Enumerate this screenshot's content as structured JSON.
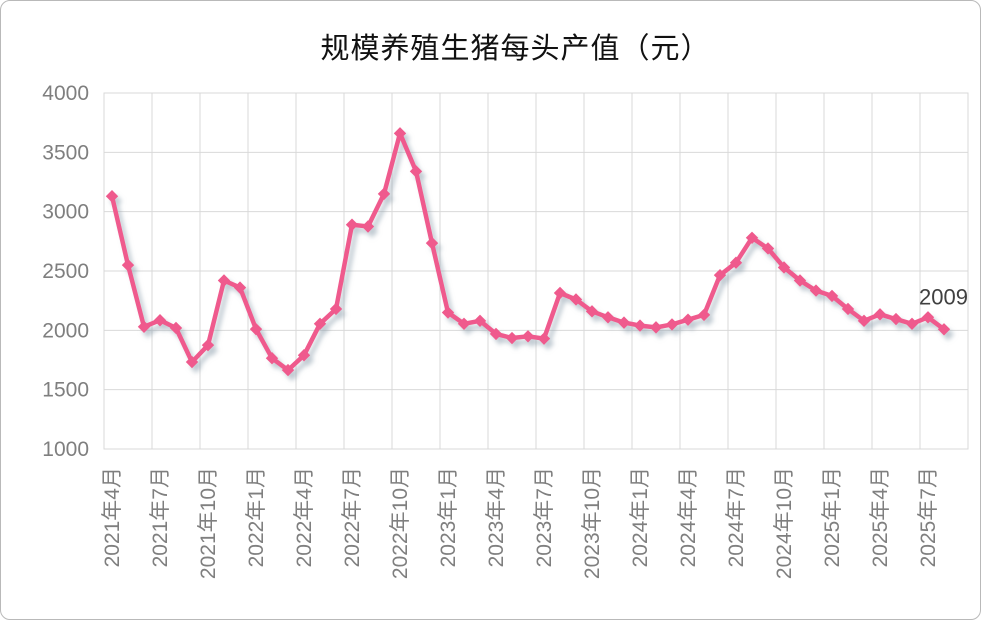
{
  "title": "规模养殖生猪每头产值（元）",
  "chart_data": {
    "type": "line",
    "title": "规模养殖生猪每头产值（元）",
    "unit": "元",
    "x": [
      "2021年4月",
      "2021年5月",
      "2021年6月",
      "2021年7月",
      "2021年8月",
      "2021年9月",
      "2021年10月",
      "2021年11月",
      "2021年12月",
      "2022年1月",
      "2022年2月",
      "2022年3月",
      "2022年4月",
      "2022年5月",
      "2022年6月",
      "2022年7月",
      "2022年8月",
      "2022年9月",
      "2022年10月",
      "2022年11月",
      "2022年12月",
      "2023年1月",
      "2023年2月",
      "2023年3月",
      "2023年4月",
      "2023年5月",
      "2023年6月",
      "2023年7月",
      "2023年8月",
      "2023年9月",
      "2023年10月",
      "2023年11月",
      "2023年12月",
      "2024年1月",
      "2024年2月",
      "2024年3月",
      "2024年4月",
      "2024年5月",
      "2024年6月",
      "2024年7月",
      "2024年8月",
      "2024年9月",
      "2024年10月",
      "2024年11月",
      "2024年12月",
      "2025年1月",
      "2025年2月",
      "2025年3月",
      "2025年4月",
      "2025年5月",
      "2025年6月",
      "2025年7月",
      "2025年8月"
    ],
    "values": [
      3130,
      2550,
      2030,
      2085,
      2020,
      1733,
      1875,
      2420,
      2360,
      2010,
      1765,
      1665,
      1790,
      2055,
      2180,
      2890,
      2875,
      3150,
      3660,
      3340,
      2735,
      2150,
      2055,
      2080,
      1970,
      1935,
      1950,
      1930,
      2315,
      2260,
      2160,
      2110,
      2065,
      2040,
      2025,
      2050,
      2090,
      2130,
      2465,
      2570,
      2780,
      2690,
      2530,
      2420,
      2335,
      2290,
      2180,
      2080,
      2135,
      2095,
      2055,
      2110,
      2009
    ],
    "x_tick_labels": [
      "2021年4月",
      "2021年7月",
      "2021年10月",
      "2022年1月",
      "2022年4月",
      "2022年7月",
      "2022年10月",
      "2023年1月",
      "2023年4月",
      "2023年7月",
      "2023年10月",
      "2024年1月",
      "2024年4月",
      "2024年7月",
      "2024年10月",
      "2025年1月",
      "2025年4月",
      "2025年7月"
    ],
    "y_ticks": [
      4000,
      3500,
      3000,
      2500,
      2000,
      1500,
      1000
    ],
    "ylim": [
      1000,
      4000
    ],
    "grid": "both",
    "legend": "none",
    "marker": "diamond",
    "line_color": "#ef5a8d",
    "gridline_color": "#d9d9d9",
    "axis_label_color": "#7f7f7f",
    "end_label": "2009",
    "end_label_color": "#404040"
  }
}
